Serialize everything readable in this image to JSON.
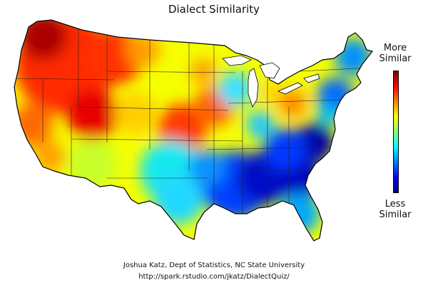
{
  "title": "Dialect Similarity",
  "legend": {
    "high_line1": "More",
    "high_line2": "Similar",
    "low_line1": "Less",
    "low_line2": "Similar",
    "colormap": [
      "#7f0000",
      "#ff0000",
      "#ff7f00",
      "#ffff00",
      "#7fff7f",
      "#00ffff",
      "#007fff",
      "#0000ff",
      "#00007f"
    ]
  },
  "credit": {
    "author": "Joshua Katz, Dept of Statistics, NC State University",
    "url": "http://spark.rstudio.com/jkatz/DialectQuiz/"
  }
}
